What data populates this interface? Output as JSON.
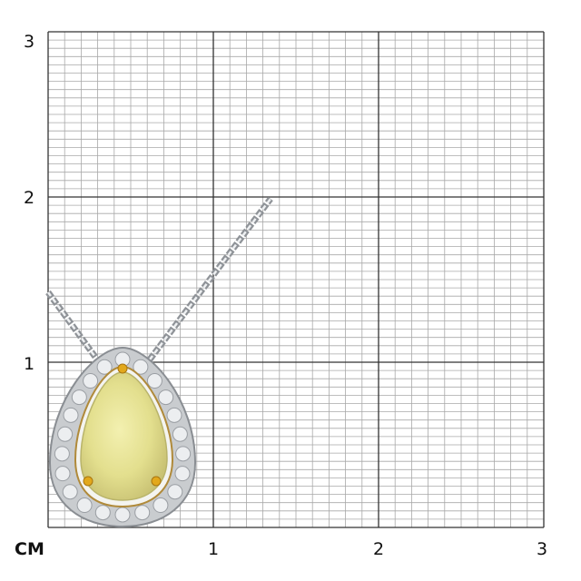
{
  "scale": {
    "unit_label": "CM",
    "y_ticks": [
      "1",
      "2",
      "3"
    ],
    "x_ticks": [
      "1",
      "2",
      "3"
    ],
    "range_cm": [
      0,
      3
    ],
    "minor_divisions_x_per_cm": 10,
    "minor_divisions_y_per_cm": 20
  },
  "product": {
    "type": "pear-shaped halo pendant necklace",
    "gem_color": "#e8e59a",
    "halo_color": "#d4d6d8",
    "prong_color": "#e2a81c",
    "chain_color": "#9a9ea3"
  },
  "colors": {
    "grid_minor": "#a8a8a8",
    "grid_major": "#333333",
    "background": "#ffffff"
  }
}
